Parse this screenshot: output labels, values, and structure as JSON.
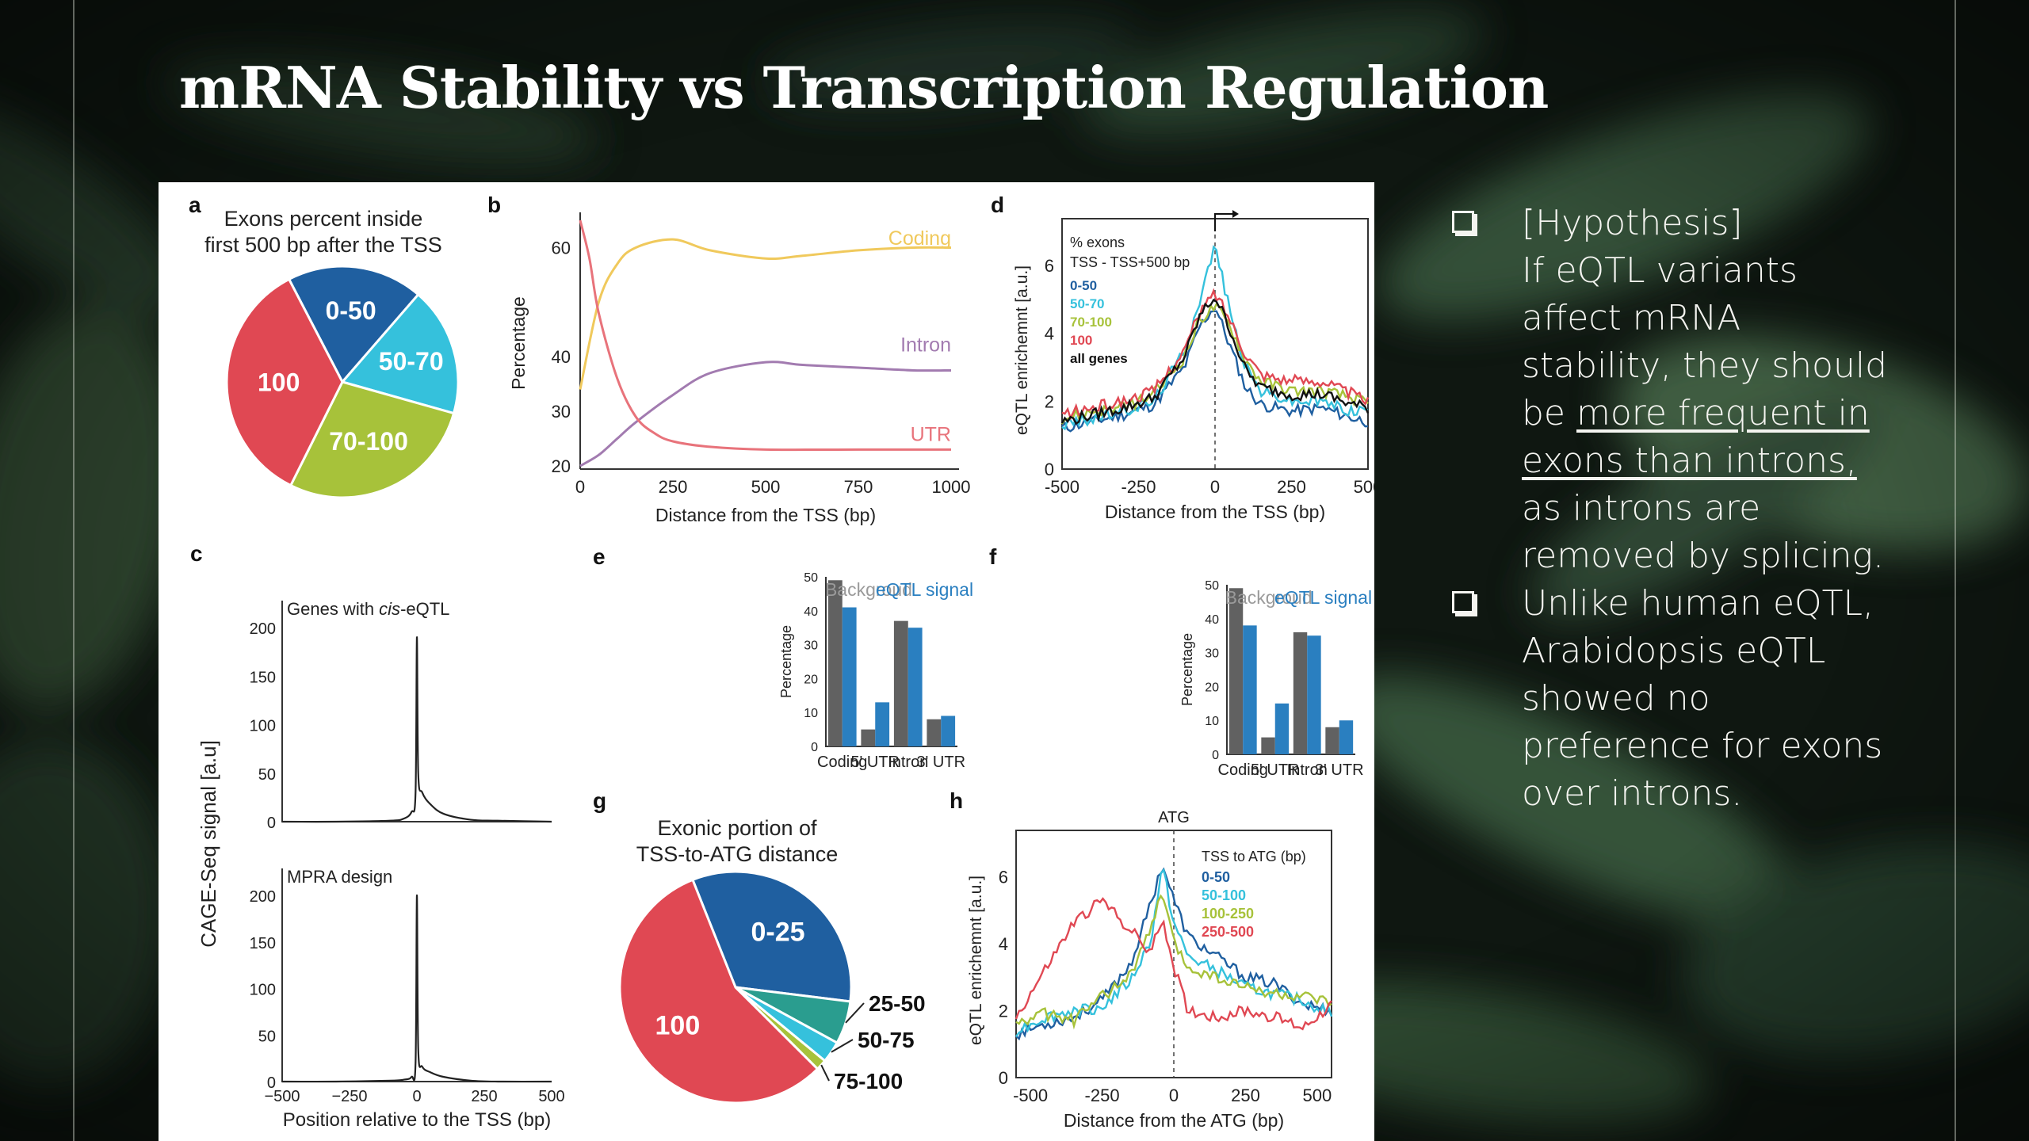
{
  "slide": {
    "title": "mRNA Stability vs Transcription Regulation",
    "bullets": [
      {
        "lines": [
          "[Hypothesis]",
          "If eQTL variants",
          "affect mRNA",
          "stability, they should",
          "be "
        ],
        "underlined": [
          "more frequent in",
          "exons than introns,"
        ],
        "tail": [
          "as introns are",
          "removed by splicing."
        ]
      },
      {
        "lines": [
          "Unlike human eQTL,",
          "Arabidopsis eQTL",
          "showed no",
          "preference for exons",
          "over introns."
        ]
      }
    ]
  },
  "colors": {
    "blue": "#1f5fa0",
    "cyan": "#35c1dc",
    "olive": "#a7c23a",
    "red": "#e04853",
    "teal": "#2a9d8f",
    "gold": "#f0c95c",
    "purple": "#a27bb0",
    "pink": "#e8737b",
    "gray": "#616161",
    "barblue": "#2a7fc0"
  },
  "chart_data": [
    {
      "panel": "a",
      "type": "pie",
      "title": "Exons percent inside first 500 bp after the TSS",
      "title_lines": [
        "Exons percent inside",
        "first 500 bp after the TSS"
      ],
      "slices": [
        {
          "label": "0-50",
          "value": 19
        },
        {
          "label": "50-70",
          "value": 18
        },
        {
          "label": "70-100",
          "value": 28
        },
        {
          "label": "100",
          "value": 35
        }
      ]
    },
    {
      "panel": "b",
      "type": "line",
      "xlabel": "Distance from the TSS (bp)",
      "ylabel": "Percentage",
      "xlim": [
        0,
        1000
      ],
      "ylim": [
        20,
        65
      ],
      "xticks": [
        "0",
        "250",
        "500",
        "750",
        "1000"
      ],
      "yticks": [
        "20",
        "30",
        "40",
        "60"
      ],
      "series": [
        {
          "name": "Coding",
          "x": [
            0,
            50,
            100,
            150,
            250,
            350,
            500,
            600,
            750,
            900,
            1000
          ],
          "y": [
            34,
            50,
            57,
            60,
            61.5,
            59.5,
            58,
            58.5,
            59.5,
            60,
            60
          ]
        },
        {
          "name": "Intron",
          "x": [
            0,
            50,
            100,
            150,
            250,
            350,
            500,
            600,
            750,
            900,
            1000
          ],
          "y": [
            20,
            22,
            25,
            28,
            33,
            37,
            39,
            38.5,
            38,
            37.5,
            37.5
          ]
        },
        {
          "name": "UTR",
          "x": [
            0,
            25,
            50,
            100,
            150,
            200,
            250,
            350,
            500,
            750,
            1000
          ],
          "y": [
            65,
            58,
            48,
            36,
            29,
            26,
            24.5,
            23.5,
            23,
            23,
            23
          ]
        }
      ]
    },
    {
      "panel": "c",
      "type": "line",
      "ylabel": "CAGE-Seq signal [a.u]",
      "xlabel": "Position relative to the TSS (bp)",
      "xlim": [
        -500,
        500
      ],
      "ylim": [
        0,
        200
      ],
      "xticks": [
        "-500",
        "-250",
        "0",
        "250",
        "500"
      ],
      "yticks": [
        "0",
        "50",
        "100",
        "150",
        "200"
      ],
      "subplots": [
        {
          "title": "Genes with cis-eQTL",
          "title_pre": "Genes with ",
          "title_it": "cis",
          "title_post": "-eQTL",
          "x": [
            -500,
            -300,
            -100,
            -50,
            -20,
            -5,
            0,
            5,
            20,
            50,
            100,
            200,
            300,
            500
          ],
          "y": [
            0,
            0,
            1,
            3,
            10,
            30,
            190,
            50,
            30,
            18,
            8,
            2,
            1,
            0
          ]
        },
        {
          "title": "MPRA design",
          "x": [
            -500,
            -300,
            -100,
            -50,
            -20,
            -5,
            0,
            5,
            20,
            50,
            100,
            200,
            300,
            500
          ],
          "y": [
            0,
            0,
            1,
            2,
            5,
            20,
            200,
            35,
            16,
            10,
            5,
            1,
            0,
            0
          ]
        }
      ]
    },
    {
      "panel": "d",
      "type": "line",
      "ylabel": "eQTL enrichemnt [a.u.]",
      "xlabel": "Distance from the TSS (bp)",
      "xlim": [
        -500,
        500
      ],
      "ylim": [
        0,
        7
      ],
      "xticks": [
        "-500",
        "-250",
        "0",
        "250",
        "500"
      ],
      "yticks": [
        "0",
        "2",
        "4",
        "6"
      ],
      "legend_title": [
        "% exons",
        "TSS - TSS+500 bp"
      ],
      "series": [
        {
          "name": "0-50",
          "x": [
            -500,
            -400,
            -300,
            -200,
            -100,
            -50,
            0,
            50,
            100,
            150,
            250,
            350,
            450,
            500
          ],
          "y": [
            1.2,
            1.4,
            1.6,
            1.9,
            3.0,
            4.2,
            4.8,
            3.6,
            2.4,
            1.9,
            1.7,
            1.8,
            1.5,
            1.4
          ]
        },
        {
          "name": "50-70",
          "x": [
            -500,
            -400,
            -300,
            -200,
            -100,
            -50,
            0,
            50,
            100,
            150,
            250,
            350,
            450,
            500
          ],
          "y": [
            1.3,
            1.5,
            1.7,
            2.0,
            3.5,
            5.0,
            6.6,
            4.6,
            3.0,
            2.3,
            2.0,
            2.0,
            1.7,
            1.8
          ]
        },
        {
          "name": "70-100",
          "x": [
            -500,
            -400,
            -300,
            -200,
            -100,
            -50,
            0,
            50,
            100,
            150,
            250,
            350,
            450,
            500
          ],
          "y": [
            1.5,
            1.7,
            1.8,
            2.2,
            3.3,
            4.4,
            4.8,
            4.2,
            3.2,
            2.6,
            2.3,
            2.3,
            2.1,
            1.9
          ]
        },
        {
          "name": "100",
          "x": [
            -500,
            -400,
            -300,
            -200,
            -100,
            -50,
            0,
            50,
            100,
            150,
            250,
            350,
            450,
            500
          ],
          "y": [
            1.6,
            1.8,
            2.0,
            2.3,
            3.5,
            4.6,
            5.2,
            4.4,
            3.4,
            2.8,
            2.6,
            2.6,
            2.2,
            2.0
          ]
        },
        {
          "name": "all genes",
          "x": [
            -500,
            -400,
            -300,
            -200,
            -100,
            -50,
            0,
            50,
            100,
            150,
            250,
            350,
            450,
            500
          ],
          "y": [
            1.4,
            1.6,
            1.8,
            2.1,
            3.3,
            4.5,
            5.1,
            4.1,
            2.9,
            2.4,
            2.2,
            2.2,
            1.9,
            1.8
          ]
        }
      ]
    },
    {
      "panel": "e",
      "type": "bar",
      "ylabel": "Percentage",
      "ylim": [
        0,
        50
      ],
      "yticks": [
        "0",
        "10",
        "20",
        "30",
        "40",
        "50"
      ],
      "categories": [
        "Coding",
        "5' UTR",
        "Intron",
        "3' UTR"
      ],
      "series": [
        {
          "name": "Backgroud",
          "values": [
            49,
            5,
            37,
            8
          ]
        },
        {
          "name": "eQTL signal",
          "values": [
            41,
            13,
            35,
            9
          ]
        }
      ]
    },
    {
      "panel": "f",
      "type": "bar",
      "ylabel": "Percentage",
      "ylim": [
        0,
        50
      ],
      "yticks": [
        "0",
        "10",
        "20",
        "30",
        "40",
        "50"
      ],
      "categories": [
        "Coding",
        "5' UTR",
        "Intron",
        "3' UTR"
      ],
      "series": [
        {
          "name": "Backgroud",
          "values": [
            49,
            5,
            36,
            8
          ]
        },
        {
          "name": "eQTL signal",
          "values": [
            38,
            15,
            35,
            10
          ]
        }
      ]
    },
    {
      "panel": "g",
      "type": "pie",
      "title": "Exonic portion of TSS-to-ATG distance",
      "title_lines": [
        "Exonic portion of",
        "TSS-to-ATG distance"
      ],
      "slices": [
        {
          "label": "0-25",
          "value": 33
        },
        {
          "label": "25-50",
          "value": 6
        },
        {
          "label": "50-75",
          "value": 3
        },
        {
          "label": "75-100",
          "value": 1.5
        },
        {
          "label": "100",
          "value": 56.5
        }
      ]
    },
    {
      "panel": "h",
      "type": "line",
      "ylabel": "eQTL enrichemnt [a.u.]",
      "xlabel": "Distance from the ATG (bp)",
      "xlim": [
        -550,
        550
      ],
      "ylim": [
        0,
        7
      ],
      "xticks": [
        "-500",
        "-250",
        "0",
        "250",
        "500"
      ],
      "yticks": [
        "0",
        "2",
        "4",
        "6"
      ],
      "marker_label": "ATG",
      "legend_title": "TSS to ATG (bp)",
      "series": [
        {
          "name": "0-50",
          "x": [
            -550,
            -450,
            -350,
            -250,
            -150,
            -80,
            -40,
            0,
            50,
            150,
            250,
            350,
            450,
            550
          ],
          "y": [
            1.3,
            1.6,
            1.8,
            2.3,
            3.4,
            5.2,
            6.4,
            5.3,
            4.2,
            3.6,
            3.0,
            2.8,
            2.2,
            2.0
          ]
        },
        {
          "name": "50-100",
          "x": [
            -550,
            -450,
            -350,
            -250,
            -150,
            -80,
            -40,
            0,
            50,
            150,
            250,
            350,
            450,
            550
          ],
          "y": [
            1.4,
            1.8,
            2.0,
            2.1,
            2.9,
            4.1,
            6.3,
            4.6,
            3.6,
            3.2,
            2.7,
            2.5,
            2.3,
            1.9
          ]
        },
        {
          "name": "100-250",
          "x": [
            -550,
            -450,
            -350,
            -250,
            -150,
            -80,
            -40,
            0,
            50,
            150,
            250,
            350,
            450,
            550
          ],
          "y": [
            1.6,
            1.9,
            1.7,
            2.4,
            3.1,
            4.4,
            5.6,
            4.0,
            3.3,
            3.0,
            2.7,
            2.5,
            2.4,
            2.2
          ]
        },
        {
          "name": "250-500",
          "x": [
            -550,
            -450,
            -350,
            -250,
            -150,
            -80,
            -40,
            0,
            50,
            150,
            250,
            350,
            450,
            550
          ],
          "y": [
            1.8,
            3.2,
            4.6,
            5.3,
            4.4,
            3.7,
            4.8,
            3.3,
            2.0,
            1.8,
            2.0,
            1.8,
            1.5,
            2.2
          ]
        }
      ]
    }
  ]
}
